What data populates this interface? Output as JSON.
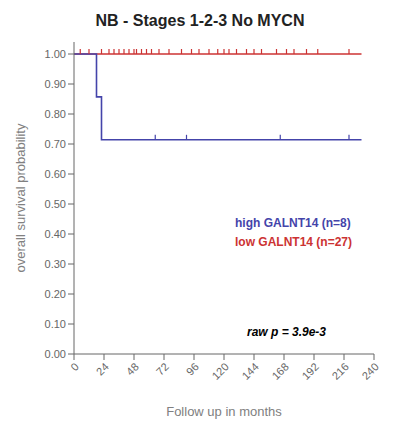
{
  "chart_data": {
    "type": "step",
    "title": "NB - Stages 1-2-3 No MYCN",
    "xlabel": "Follow up in months",
    "ylabel": "overall survival probability",
    "xlim": [
      0,
      240
    ],
    "ylim": [
      0.0,
      1.04
    ],
    "xticks": [
      0,
      24,
      48,
      72,
      96,
      120,
      144,
      168,
      192,
      216,
      240
    ],
    "yticks": [
      {
        "value": 0.0,
        "label": "0.00"
      },
      {
        "value": 0.1,
        "label": "0.10"
      },
      {
        "value": 0.2,
        "label": "0.20"
      },
      {
        "value": 0.3,
        "label": "0.30"
      },
      {
        "value": 0.4,
        "label": "0.40"
      },
      {
        "value": 0.5,
        "label": "0.50"
      },
      {
        "value": 0.6,
        "label": "0.60"
      },
      {
        "value": 0.7,
        "label": "0.70"
      },
      {
        "value": 0.8,
        "label": "0.80"
      },
      {
        "value": 0.9,
        "label": "0.90"
      },
      {
        "value": 1.0,
        "label": "1.00"
      }
    ],
    "grid": false,
    "legend": "lower right",
    "series": [
      {
        "name": "low GALNT14 (n=27)",
        "color": "#cc3333",
        "marker": "tick",
        "x": [
          0,
          230
        ],
        "values": [
          1.0,
          1.0
        ],
        "censors_x": [
          5,
          12,
          22,
          28,
          32,
          36,
          40,
          44,
          48,
          50,
          54,
          58,
          62,
          68,
          76,
          86,
          94,
          100,
          108,
          115,
          120,
          124,
          130,
          138,
          144,
          150,
          162,
          170,
          176,
          186,
          195,
          220
        ],
        "censors_y": [
          1.0,
          1.0,
          1.0,
          1.0,
          1.0,
          1.0,
          1.0,
          1.0,
          1.0,
          1.0,
          1.0,
          1.0,
          1.0,
          1.0,
          1.0,
          1.0,
          1.0,
          1.0,
          1.0,
          1.0,
          1.0,
          1.0,
          1.0,
          1.0,
          1.0,
          1.0,
          1.0,
          1.0,
          1.0,
          1.0,
          1.0,
          1.0
        ]
      },
      {
        "name": "high GALNT14 (n=8)",
        "color": "#4444aa",
        "marker": "tick",
        "x": [
          0,
          18,
          22,
          230
        ],
        "values": [
          1.0,
          0.857,
          0.714,
          0.714
        ],
        "censors_x": [
          65,
          90,
          165,
          220
        ],
        "censors_y": [
          0.714,
          0.714,
          0.714,
          0.714
        ]
      }
    ],
    "annotations": [
      {
        "text": "raw p = 3.9e-3"
      }
    ]
  }
}
